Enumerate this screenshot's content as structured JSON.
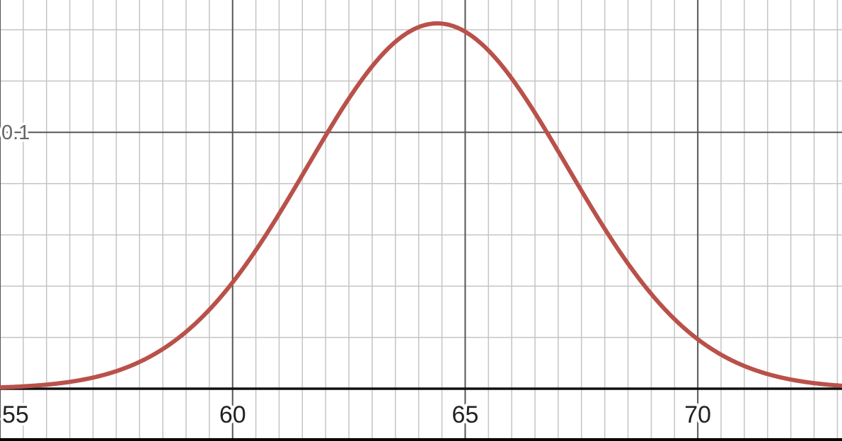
{
  "chart_data": {
    "type": "line",
    "title": "",
    "xlabel": "",
    "ylabel": "",
    "xlim": [
      55.0,
      73.1
    ],
    "ylim": [
      0,
      0.1516
    ],
    "x_ticks": [
      {
        "value": 55,
        "label": "55"
      },
      {
        "value": 60,
        "label": "60"
      },
      {
        "value": 65,
        "label": "65"
      },
      {
        "value": 70,
        "label": "70"
      }
    ],
    "y_ticks": [
      {
        "value": 0.1,
        "label": "0.1"
      }
    ],
    "x_minor_step": 0.5,
    "x_major_step": 5,
    "y_minor_step": 0.02,
    "y_major_step": 0.1,
    "grid": true,
    "series": [
      {
        "color": "#b9514a",
        "distribution": "normal",
        "mean": 64.4,
        "sd": 2.8,
        "x": [
          55,
          56,
          57,
          58,
          59,
          60,
          61,
          62,
          63,
          64,
          64.4,
          65,
          66,
          67,
          68,
          69,
          70,
          71,
          72,
          73
        ],
        "y": [
          0.0005,
          0.0016,
          0.0042,
          0.0103,
          0.0222,
          0.0415,
          0.0684,
          0.0983,
          0.1232,
          0.1408,
          0.1425,
          0.136,
          0.1216,
          0.0974,
          0.0691,
          0.0434,
          0.0263,
          0.0125,
          0.0057,
          0.0023
        ]
      }
    ]
  },
  "colors": {
    "background": "#ffffff",
    "minor_grid": "#c4c4c4",
    "major_grid": "#555555",
    "axis": "#111111",
    "curve": "#b9514a"
  }
}
